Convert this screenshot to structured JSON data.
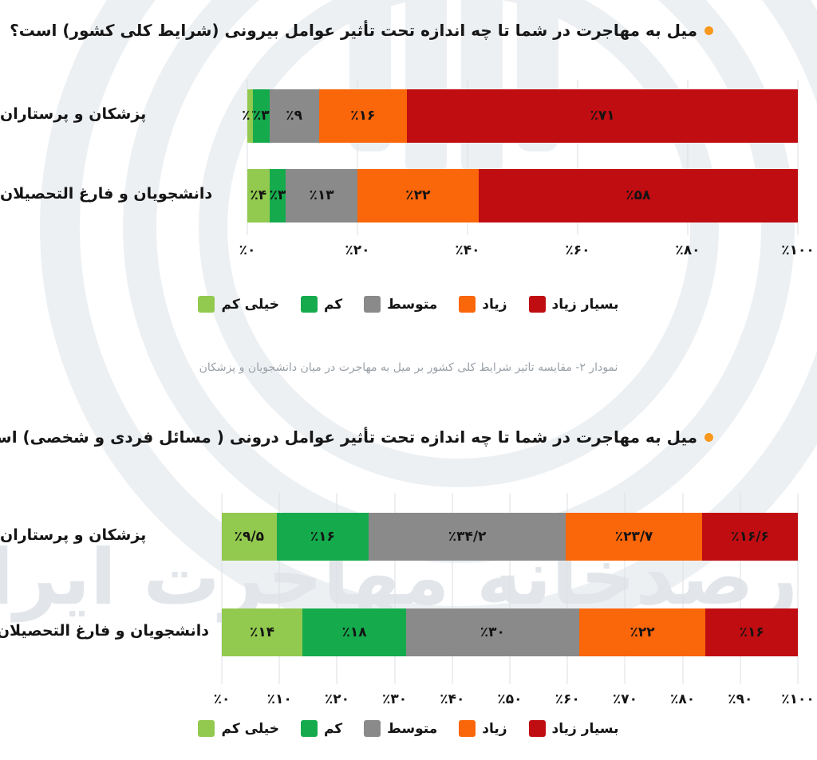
{
  "colors": {
    "very_low": "#92c94f",
    "low": "#15ab4d",
    "medium": "#8a8a8a",
    "high": "#fa660a",
    "very_high": "#c00d12",
    "title_bullet": "#f9981d",
    "grid": "#dcdfe3",
    "caption_text": "#99a0a8",
    "watermark": "#e2e6ea"
  },
  "watermark_text": "رصدخانه مهاجرت ایران",
  "caption": "نمودار ۲- مقایسه تاثیر شرایط کلی کشور بر میل به مهاجرت در میان دانشجویان و پزشکان",
  "chart_data": [
    {
      "type": "bar",
      "subtype": "horizontal-stacked",
      "title": "میل به مهاجرت در شما تا چه اندازه تحت تأثیر عوامل بیرونی (شرایط کلی کشور) است؟",
      "categories": [
        "پزشکان و پرستاران",
        "دانشجویان و فارغ التحصیلان"
      ],
      "series": [
        {
          "name": "خیلی کم",
          "color_key": "very_low",
          "values": [
            1,
            4
          ],
          "labels": [
            "٪۱",
            "٪۴"
          ]
        },
        {
          "name": "کم",
          "color_key": "low",
          "values": [
            3,
            3
          ],
          "labels": [
            "٪۳",
            "٪۳"
          ]
        },
        {
          "name": "متوسط",
          "color_key": "medium",
          "values": [
            9,
            13
          ],
          "labels": [
            "٪۹",
            "٪۱۳"
          ]
        },
        {
          "name": "زیاد",
          "color_key": "high",
          "values": [
            16,
            22
          ],
          "labels": [
            "٪۱۶",
            "٪۲۲"
          ]
        },
        {
          "name": "بسیار زیاد",
          "color_key": "very_high",
          "values": [
            71,
            58
          ],
          "labels": [
            "٪۷۱",
            "٪۵۸"
          ]
        }
      ],
      "xlim": [
        0,
        100
      ],
      "grid": true,
      "legend_position": "bottom",
      "x_ticks": [
        {
          "v": 0,
          "label": "٪۰"
        },
        {
          "v": 20,
          "label": "٪۲۰"
        },
        {
          "v": 40,
          "label": "٪۴۰"
        },
        {
          "v": 60,
          "label": "٪۶۰"
        },
        {
          "v": 80,
          "label": "٪۸۰"
        },
        {
          "v": 100,
          "label": "٪۱۰۰"
        }
      ]
    },
    {
      "type": "bar",
      "subtype": "horizontal-stacked",
      "title": "میل به مهاجرت در شما تا چه اندازه تحت تأثیر عوامل درونی ( مسائل فردی و شخصی) است؟",
      "categories": [
        "پزشکان و پرستاران",
        "دانشجویان و فارغ التحصیلان"
      ],
      "series": [
        {
          "name": "خیلی کم",
          "color_key": "very_low",
          "values": [
            9.5,
            14
          ],
          "labels": [
            "٪۹/۵",
            "٪۱۴"
          ]
        },
        {
          "name": "کم",
          "color_key": "low",
          "values": [
            16,
            18
          ],
          "labels": [
            "٪۱۶",
            "٪۱۸"
          ]
        },
        {
          "name": "متوسط",
          "color_key": "medium",
          "values": [
            34.2,
            30
          ],
          "labels": [
            "٪۳۴/۲",
            "٪۳۰"
          ]
        },
        {
          "name": "زیاد",
          "color_key": "high",
          "values": [
            23.7,
            22
          ],
          "labels": [
            "٪۲۳/۷",
            "٪۲۲"
          ]
        },
        {
          "name": "بسیار زیاد",
          "color_key": "very_high",
          "values": [
            16.6,
            16
          ],
          "labels": [
            "٪۱۶/۶",
            "٪۱۶"
          ]
        }
      ],
      "xlim": [
        0,
        100
      ],
      "grid": true,
      "legend_position": "bottom",
      "x_ticks": [
        {
          "v": 0,
          "label": "٪۰"
        },
        {
          "v": 10,
          "label": "٪۱۰"
        },
        {
          "v": 20,
          "label": "٪۲۰"
        },
        {
          "v": 30,
          "label": "٪۳۰"
        },
        {
          "v": 40,
          "label": "٪۴۰"
        },
        {
          "v": 50,
          "label": "٪۵۰"
        },
        {
          "v": 60,
          "label": "٪۶۰"
        },
        {
          "v": 70,
          "label": "٪۷۰"
        },
        {
          "v": 80,
          "label": "٪۸۰"
        },
        {
          "v": 90,
          "label": "٪۹۰"
        },
        {
          "v": 100,
          "label": "٪۱۰۰"
        }
      ]
    }
  ]
}
